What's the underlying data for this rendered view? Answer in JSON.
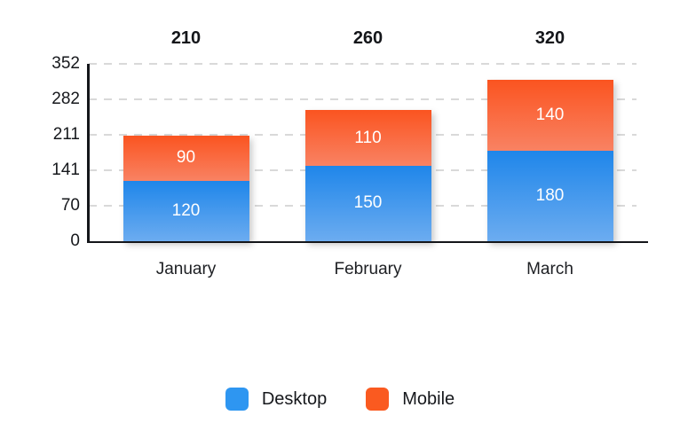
{
  "chart_data": {
    "type": "bar",
    "stacked": true,
    "title": "",
    "xlabel": "",
    "ylabel": "",
    "categories": [
      "January",
      "February",
      "March"
    ],
    "series": [
      {
        "name": "Desktop",
        "values": [
          120,
          150,
          180
        ],
        "color": "#2e96f1",
        "gradient_top": "#1f86ea",
        "gradient_bottom": "#6cacf0"
      },
      {
        "name": "Mobile",
        "values": [
          90,
          110,
          140
        ],
        "color": "#fa5a20",
        "gradient_top": "#fa5420",
        "gradient_bottom": "#f98263"
      }
    ],
    "totals": [
      210,
      260,
      320
    ],
    "y_ticks": [
      0,
      70,
      141,
      211,
      282,
      352
    ],
    "ylim": [
      0,
      352
    ],
    "grid": "horizontal-dashed",
    "gridline_color": "#d9d9d9",
    "axis_color": "#14161a",
    "value_label_color": "#ffffff",
    "legend_position": "bottom"
  }
}
